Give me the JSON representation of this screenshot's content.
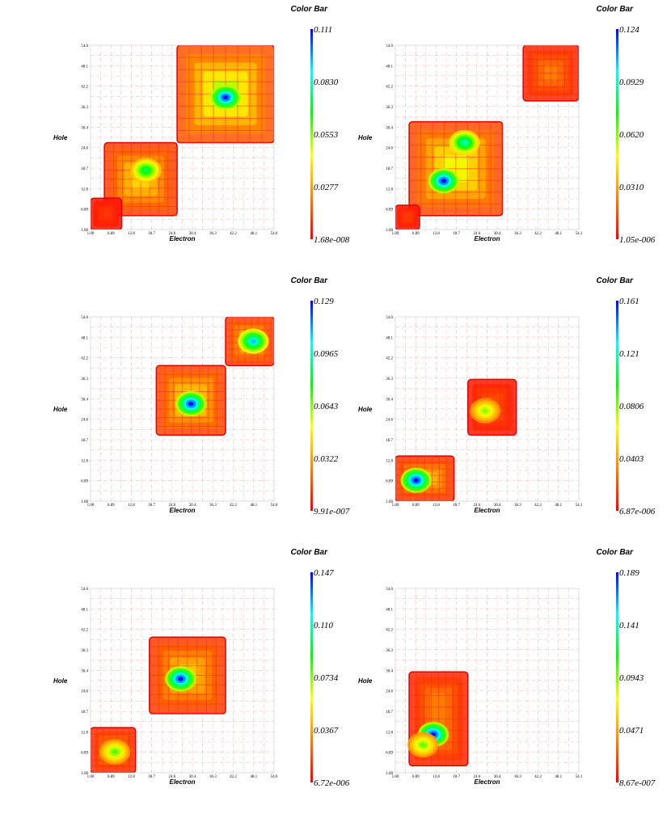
{
  "figure": {
    "panels": [
      {
        "axes": {
          "x": {
            "label": "Electron",
            "ticks": [
              "1.00",
              "6.89",
              "12.8",
              "18.7",
              "24.6",
              "30.4",
              "36.3",
              "42.2",
              "48.1",
              "54.0"
            ]
          },
          "y": {
            "label": "Hole",
            "ticks": [
              "1.00",
              "6.89",
              "12.8",
              "18.7",
              "24.6",
              "30.4",
              "36.3",
              "42.2",
              "48.1",
              "54.0"
            ]
          }
        },
        "colorbar": {
          "title": "Color Bar",
          "ticks": [
            "0.111",
            "0.0830",
            "0.0553",
            "0.0277",
            "1.68e-008"
          ]
        }
      },
      {
        "axes": {
          "x": {
            "label": "Electron",
            "ticks": [
              "1.00",
              "6.89",
              "12.8",
              "18.7",
              "24.6",
              "30.4",
              "36.3",
              "42.2",
              "48.1",
              "54.1"
            ]
          },
          "y": {
            "label": "Hole",
            "ticks": [
              "1.00",
              "6.89",
              "12.8",
              "18.7",
              "24.6",
              "30.4",
              "36.3",
              "42.2",
              "48.1",
              "54.0"
            ]
          }
        },
        "colorbar": {
          "title": "Color Bar",
          "ticks": [
            "0.124",
            "0.0929",
            "0.0620",
            "0.0310",
            "1.05e-006"
          ]
        }
      },
      {
        "axes": {
          "x": {
            "label": "Electron",
            "ticks": [
              "1.00",
              "6.89",
              "12.8",
              "18.7",
              "24.6",
              "30.4",
              "36.3",
              "42.2",
              "48.1",
              "54.0"
            ]
          },
          "y": {
            "label": "Hole",
            "ticks": [
              "1.00",
              "6.89",
              "12.8",
              "18.7",
              "24.6",
              "30.4",
              "36.3",
              "42.2",
              "48.1",
              "54.0"
            ]
          }
        },
        "colorbar": {
          "title": "Color Bar",
          "ticks": [
            "0.129",
            "0.0965",
            "0.0643",
            "0.0322",
            "9.91e-007"
          ]
        }
      },
      {
        "axes": {
          "x": {
            "label": "Electron",
            "ticks": [
              "1.00",
              "6.89",
              "12.8",
              "18.7",
              "24.6",
              "30.4",
              "36.3",
              "42.2",
              "48.1",
              "54.1"
            ]
          },
          "y": {
            "label": "Hole",
            "ticks": [
              "1.00",
              "6.89",
              "12.8",
              "18.7",
              "24.6",
              "30.4",
              "36.3",
              "42.2",
              "48.1",
              "54.0"
            ]
          }
        },
        "colorbar": {
          "title": "Color Bar",
          "ticks": [
            "0.161",
            "0.121",
            "0.0806",
            "0.0403",
            "6.87e-006"
          ]
        }
      },
      {
        "axes": {
          "x": {
            "label": "Electron",
            "ticks": [
              "1.00",
              "6.89",
              "12.8",
              "18.7",
              "24.6",
              "30.4",
              "36.3",
              "42.2",
              "48.1",
              "54.0"
            ]
          },
          "y": {
            "label": "Hole",
            "ticks": [
              "1.00",
              "6.89",
              "12.8",
              "18.7",
              "24.6",
              "30.4",
              "36.3",
              "42.2",
              "48.1",
              "54.0"
            ]
          }
        },
        "colorbar": {
          "title": "Color Bar",
          "ticks": [
            "0.147",
            "0.110",
            "0.0734",
            "0.0367",
            "6.72e-006"
          ]
        }
      },
      {
        "axes": {
          "x": {
            "label": "Electron",
            "ticks": [
              "1.00",
              "6.89",
              "12.8",
              "18.7",
              "24.6",
              "30.4",
              "36.3",
              "42.2",
              "48.1",
              "54.1"
            ]
          },
          "y": {
            "label": "Hole",
            "ticks": [
              "1.00",
              "6.89",
              "12.8",
              "18.7",
              "24.6",
              "30.4",
              "36.3",
              "42.2",
              "48.1",
              "54.0"
            ]
          }
        },
        "colorbar": {
          "title": "Color Bar",
          "ticks": [
            "0.189",
            "0.141",
            "0.0943",
            "0.0471",
            "8.67e-007"
          ]
        }
      }
    ]
  },
  "chart_data": [
    {
      "type": "heatmap",
      "title": "",
      "xlabel": "Electron",
      "ylabel": "Hole",
      "xlim": [
        1.0,
        54.0
      ],
      "ylim": [
        1.0,
        54.0
      ],
      "colorbar": {
        "title": "Color Bar",
        "min": 1.68e-08,
        "max": 0.111,
        "ticks": [
          "0.111",
          "0.0830",
          "0.0553",
          "0.0277",
          "1.68e-008"
        ]
      },
      "blocks": [
        {
          "x": [
            5,
            26
          ],
          "y": [
            5,
            26
          ],
          "value": 0.045
        },
        {
          "x": [
            26,
            54
          ],
          "y": [
            26,
            54
          ],
          "value": 0.06
        },
        {
          "x": [
            1,
            10
          ],
          "y": [
            1,
            10
          ],
          "value": 0.012
        }
      ],
      "peaks": [
        {
          "x": 40,
          "y": 39,
          "value": 0.111
        },
        {
          "x": 17,
          "y": 18,
          "value": 0.075
        }
      ],
      "colormap": [
        "red",
        "orange",
        "yellow",
        "green",
        "cyan",
        "blue"
      ]
    },
    {
      "type": "heatmap",
      "title": "",
      "xlabel": "Electron",
      "ylabel": "Hole",
      "xlim": [
        1.0,
        54.1
      ],
      "ylim": [
        1.0,
        54.0
      ],
      "colorbar": {
        "title": "Color Bar",
        "min": 1.05e-06,
        "max": 0.124,
        "ticks": [
          "0.124",
          "0.0929",
          "0.0620",
          "0.0310",
          "1.05e-006"
        ]
      },
      "blocks": [
        {
          "x": [
            5,
            32
          ],
          "y": [
            5,
            32
          ],
          "value": 0.06
        },
        {
          "x": [
            38,
            54
          ],
          "y": [
            38,
            54
          ],
          "value": 0.03
        },
        {
          "x": [
            1,
            8
          ],
          "y": [
            1,
            8
          ],
          "value": 0.015
        }
      ],
      "peaks": [
        {
          "x": 15,
          "y": 15,
          "value": 0.124
        },
        {
          "x": 21,
          "y": 26,
          "value": 0.095
        }
      ],
      "colormap": [
        "red",
        "orange",
        "yellow",
        "green",
        "cyan",
        "blue"
      ]
    },
    {
      "type": "heatmap",
      "title": "",
      "xlabel": "Electron",
      "ylabel": "Hole",
      "xlim": [
        1.0,
        54.0
      ],
      "ylim": [
        1.0,
        54.0
      ],
      "colorbar": {
        "title": "Color Bar",
        "min": 9.91e-07,
        "max": 0.129,
        "ticks": [
          "0.129",
          "0.0965",
          "0.0643",
          "0.0322",
          "9.91e-007"
        ]
      },
      "blocks": [
        {
          "x": [
            20,
            40
          ],
          "y": [
            20,
            40
          ],
          "value": 0.055
        },
        {
          "x": [
            40,
            54
          ],
          "y": [
            40,
            54
          ],
          "value": 0.05
        }
      ],
      "peaks": [
        {
          "x": 30,
          "y": 29,
          "value": 0.129
        },
        {
          "x": 48,
          "y": 47,
          "value": 0.11
        }
      ],
      "colormap": [
        "red",
        "orange",
        "yellow",
        "green",
        "cyan",
        "blue"
      ]
    },
    {
      "type": "heatmap",
      "title": "",
      "xlabel": "Electron",
      "ylabel": "Hole",
      "xlim": [
        1.0,
        54.1
      ],
      "ylim": [
        1.0,
        54.0
      ],
      "colorbar": {
        "title": "Color Bar",
        "min": 6.87e-06,
        "max": 0.161,
        "ticks": [
          "0.161",
          "0.121",
          "0.0806",
          "0.0403",
          "6.87e-006"
        ]
      },
      "blocks": [
        {
          "x": [
            1,
            18
          ],
          "y": [
            1,
            14
          ],
          "value": 0.055
        },
        {
          "x": [
            22,
            36
          ],
          "y": [
            20,
            36
          ],
          "value": 0.025
        }
      ],
      "peaks": [
        {
          "x": 7,
          "y": 7,
          "value": 0.161
        },
        {
          "x": 27,
          "y": 27,
          "value": 0.08
        }
      ],
      "colormap": [
        "red",
        "orange",
        "yellow",
        "green",
        "cyan",
        "blue"
      ]
    },
    {
      "type": "heatmap",
      "title": "",
      "xlabel": "Electron",
      "ylabel": "Hole",
      "xlim": [
        1.0,
        54.0
      ],
      "ylim": [
        1.0,
        54.0
      ],
      "colorbar": {
        "title": "Color Bar",
        "min": 6.72e-06,
        "max": 0.147,
        "ticks": [
          "0.147",
          "0.110",
          "0.0734",
          "0.0367",
          "6.72e-006"
        ]
      },
      "blocks": [
        {
          "x": [
            1,
            14
          ],
          "y": [
            1,
            14
          ],
          "value": 0.04
        },
        {
          "x": [
            18,
            40
          ],
          "y": [
            18,
            40
          ],
          "value": 0.055
        }
      ],
      "peaks": [
        {
          "x": 27,
          "y": 28,
          "value": 0.147
        },
        {
          "x": 8,
          "y": 7,
          "value": 0.08
        }
      ],
      "colormap": [
        "red",
        "orange",
        "yellow",
        "green",
        "cyan",
        "blue"
      ]
    },
    {
      "type": "heatmap",
      "title": "",
      "xlabel": "Electron",
      "ylabel": "Hole",
      "xlim": [
        1.0,
        54.1
      ],
      "ylim": [
        1.0,
        54.0
      ],
      "colorbar": {
        "title": "Color Bar",
        "min": 8.67e-07,
        "max": 0.189,
        "ticks": [
          "0.189",
          "0.141",
          "0.0943",
          "0.0471",
          "8.67e-007"
        ]
      },
      "blocks": [
        {
          "x": [
            5,
            22
          ],
          "y": [
            3,
            30
          ],
          "value": 0.045
        }
      ],
      "peaks": [
        {
          "x": 12,
          "y": 12,
          "value": 0.189
        },
        {
          "x": 9,
          "y": 9,
          "value": 0.1
        }
      ],
      "colormap": [
        "red",
        "orange",
        "yellow",
        "green",
        "cyan",
        "blue"
      ]
    }
  ]
}
